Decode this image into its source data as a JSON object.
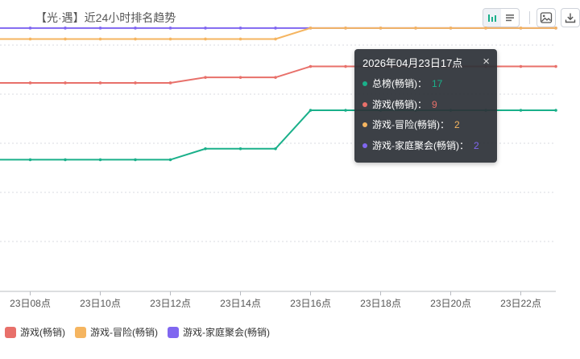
{
  "title": "【光·遇】近24小时排名趋势",
  "toolbar": {
    "icons": [
      "bar-chart-icon",
      "list-icon",
      "image-icon",
      "download-icon"
    ]
  },
  "chart_data": {
    "type": "line",
    "xlabel": "",
    "ylabel": "",
    "x": [
      "23日07点",
      "23日08点",
      "23日09点",
      "23日10点",
      "23日11点",
      "23日12点",
      "23日13点",
      "23日14点",
      "23日15点",
      "23日16点",
      "23日17点",
      "23日18点",
      "23日19点",
      "23日20点",
      "23日21点",
      "23日22点",
      "23日23点"
    ],
    "x_ticks": [
      "23日08点",
      "23日10点",
      "23日12点",
      "23日14点",
      "23日16点",
      "23日18点",
      "23日20点",
      "23日22点"
    ],
    "y_reversed": true,
    "ylim": [
      1,
      50
    ],
    "grid": true,
    "series": [
      {
        "name": "总榜(畅销)",
        "color": "#1ab08a",
        "values": [
          26,
          26,
          26,
          26,
          26,
          26,
          24,
          24,
          24,
          17,
          17,
          17,
          17,
          17,
          17,
          17,
          17
        ]
      },
      {
        "name": "游戏(畅销)",
        "color": "#e8706a",
        "values": [
          12,
          12,
          12,
          12,
          12,
          12,
          11,
          11,
          11,
          9,
          9,
          9,
          9,
          9,
          9,
          9,
          9
        ]
      },
      {
        "name": "游戏-冒险(畅销)",
        "color": "#f5b560",
        "values": [
          4,
          4,
          4,
          4,
          4,
          4,
          4,
          4,
          4,
          2,
          2,
          2,
          2,
          2,
          2,
          2,
          2
        ]
      },
      {
        "name": "游戏-家庭聚会(畅销)",
        "color": "#8067f0",
        "values": [
          2,
          2,
          2,
          2,
          2,
          2,
          2,
          2,
          2,
          2,
          2,
          2,
          2,
          2,
          2,
          2,
          2
        ]
      }
    ]
  },
  "tooltip": {
    "header": "2026年04月23日17点",
    "close": "×",
    "rows": [
      {
        "label": "总榜(畅销)：",
        "value": "17",
        "color": "#1ab08a"
      },
      {
        "label": "游戏(畅销)：",
        "value": "9",
        "color": "#e8706a"
      },
      {
        "label": "游戏-冒险(畅销)：",
        "value": "2",
        "color": "#f5b560"
      },
      {
        "label": "游戏-家庭聚会(畅销)：",
        "value": "2",
        "color": "#8067f0"
      }
    ]
  },
  "legend": [
    {
      "label": "游戏(畅销)",
      "color": "#e8706a"
    },
    {
      "label": "游戏-冒险(畅销)",
      "color": "#f5b560"
    },
    {
      "label": "游戏-家庭聚会(畅销)",
      "color": "#8067f0"
    }
  ]
}
